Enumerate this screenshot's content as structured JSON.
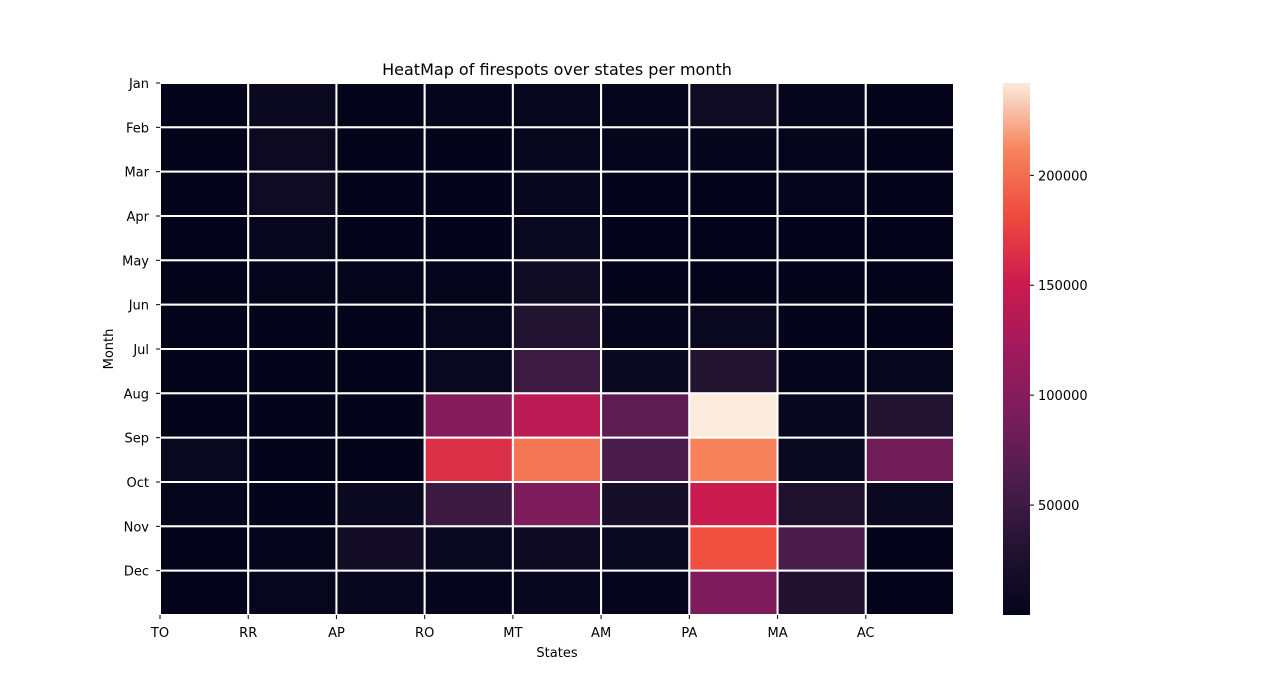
{
  "chart_data": {
    "type": "heatmap",
    "title": "HeatMap of firespots over states per month",
    "xlabel": "States",
    "ylabel": "Month",
    "x_tick_labels": [
      "TO",
      "RR",
      "AP",
      "RO",
      "MT",
      "AM",
      "PA",
      "MA",
      "AC"
    ],
    "y_tick_labels": [
      "Jan",
      "Feb",
      "Mar",
      "Apr",
      "May",
      "Jun",
      "Jul",
      "Aug",
      "Sep",
      "Oct",
      "Nov",
      "Dec"
    ],
    "n_columns": 9,
    "n_rows": 12,
    "colormap": "rocket",
    "colorbar": {
      "min": 0,
      "max": 242000,
      "ticks": [
        50000,
        100000,
        150000,
        200000
      ],
      "tick_labels": [
        "50000",
        "100000",
        "150000",
        "200000"
      ]
    },
    "values": [
      [
        1000,
        8000,
        1000,
        1500,
        3000,
        1500,
        12000,
        2000,
        1000
      ],
      [
        1000,
        9000,
        1000,
        1000,
        4000,
        1500,
        1500,
        1500,
        1000
      ],
      [
        1000,
        12000,
        1000,
        1000,
        5000,
        1000,
        1000,
        1500,
        1000
      ],
      [
        1000,
        4000,
        1000,
        1000,
        6000,
        1000,
        1000,
        1000,
        1000
      ],
      [
        1000,
        2000,
        1500,
        1500,
        12000,
        1000,
        1000,
        1000,
        1000
      ],
      [
        1000,
        1000,
        1000,
        3000,
        30000,
        1500,
        6000,
        1000,
        1000
      ],
      [
        1000,
        1000,
        1000,
        8000,
        50000,
        8000,
        30000,
        2000,
        3000
      ],
      [
        1000,
        1000,
        1000,
        100000,
        140000,
        72000,
        242000,
        4000,
        30000
      ],
      [
        6000,
        1000,
        1000,
        165000,
        205000,
        60000,
        210000,
        6000,
        85000
      ],
      [
        2000,
        1000,
        8000,
        48000,
        95000,
        20000,
        150000,
        25000,
        8000
      ],
      [
        1000,
        2000,
        15000,
        6000,
        10000,
        6000,
        185000,
        60000,
        1000
      ],
      [
        1000,
        3000,
        5000,
        1500,
        4000,
        2000,
        95000,
        28000,
        1000
      ]
    ]
  }
}
